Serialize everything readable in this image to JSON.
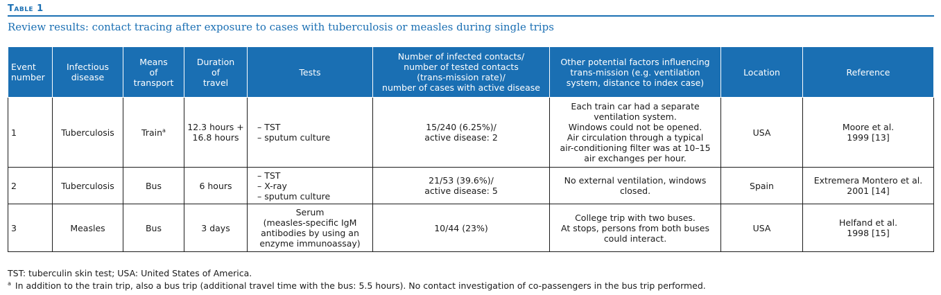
{
  "table_label": "Table 1",
  "caption": "Review results: contact tracing after exposure to cases with tuberculosis or measles during single trips",
  "headers": [
    [
      "Event",
      "number"
    ],
    [
      "Infectious",
      "disease"
    ],
    [
      "Means",
      "of",
      "transport"
    ],
    [
      "Duration",
      "of",
      "travel"
    ],
    [
      "Tests"
    ],
    [
      "Number of infected contacts/",
      "number of tested contacts",
      "(trans-mission rate)/",
      "number of cases with active disease"
    ],
    [
      "Other potential factors influencing",
      "trans-mission (e.g. ventilation",
      "system, distance to index case)"
    ],
    [
      "Location"
    ],
    [
      "Reference"
    ]
  ],
  "rows": [
    {
      "event": "1",
      "disease": "Tuberculosis",
      "transport": "Train",
      "transport_mark": "a",
      "duration": [
        "12.3 hours +",
        "16.8 hours"
      ],
      "tests": [
        "– TST",
        "– sputum culture"
      ],
      "infected": [
        "15/240 (6.25%)/",
        "active disease: 2"
      ],
      "factors": [
        "Each train car had a separate",
        "ventilation system.",
        "Windows could not be opened.",
        "Air circulation through a typical",
        "air-conditioning filter was at 10–15",
        "air exchanges per hour."
      ],
      "location": "USA",
      "reference": [
        "Moore et al.",
        "1999 [13]"
      ]
    },
    {
      "event": "2",
      "disease": "Tuberculosis",
      "transport": "Bus",
      "transport_mark": "",
      "duration": [
        "6 hours"
      ],
      "tests": [
        "– TST",
        "– X-ray",
        "– sputum culture"
      ],
      "infected": [
        "21/53 (39.6%)/",
        "active disease: 5"
      ],
      "factors": [
        "No external ventilation, windows",
        "closed."
      ],
      "location": "Spain",
      "reference": [
        "Extremera Montero et al.",
        "2001 [14]"
      ]
    },
    {
      "event": "3",
      "disease": "Measles",
      "transport": "Bus",
      "transport_mark": "",
      "duration": [
        "3 days"
      ],
      "tests": [
        "Serum",
        "(measles-specific IgM",
        "antibodies by using an",
        "enzyme immunoassay)"
      ],
      "infected": [
        "10/44 (23%)"
      ],
      "factors": [
        "College trip with two buses.",
        "At stops, persons from both buses",
        "could interact."
      ],
      "location": "USA",
      "reference": [
        "Helfand et al.",
        "1998 [15]"
      ]
    }
  ],
  "footnotes": {
    "abbreviations": "TST: tuberculin skin test; USA: United States of America.",
    "mark": "a",
    "note": "In addition to the train trip, also a bus trip (additional travel time with the bus: 5.5 hours). No contact investigation of co-passengers in the bus trip performed."
  }
}
